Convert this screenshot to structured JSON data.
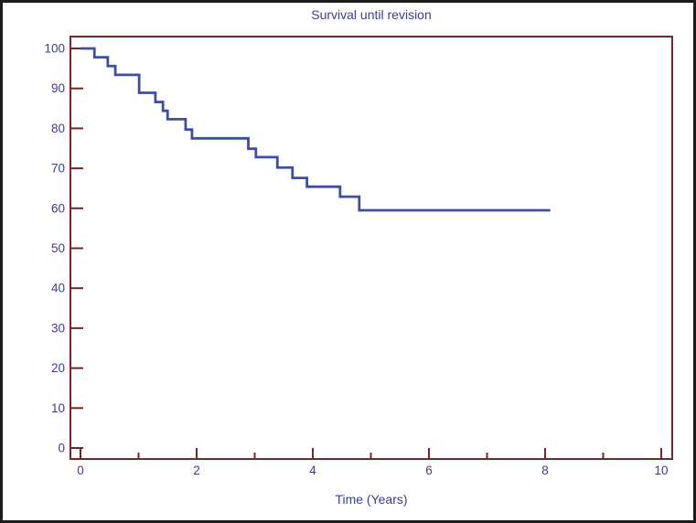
{
  "figure": {
    "title": "Survival until revision",
    "xlabel": "Time (Years)"
  },
  "colors": {
    "background": "#ffffff",
    "outer_border": "#1c1c1c",
    "axis": "#7b2423",
    "curve": "#3f4f9f",
    "text": "#3c3c8f"
  },
  "chart_data": {
    "type": "line",
    "subtype": "kaplan-meier-step",
    "title": "Survival until revision",
    "xlabel": "Time (Years)",
    "ylabel": "",
    "xlim": [
      0,
      10
    ],
    "ylim": [
      0,
      100
    ],
    "x_ticks": [
      0,
      2,
      4,
      6,
      8,
      10
    ],
    "x_minor_ticks": [
      1,
      3,
      5,
      7,
      9
    ],
    "y_ticks": [
      0,
      10,
      20,
      30,
      40,
      50,
      60,
      70,
      80,
      90,
      100
    ],
    "grid": false,
    "legend": null,
    "series": [
      {
        "name": "Survival until revision",
        "start": {
          "t": 0,
          "s": 100
        },
        "events": [
          {
            "t": 0.24,
            "s": 97.8
          },
          {
            "t": 0.47,
            "s": 95.6
          },
          {
            "t": 0.6,
            "s": 93.4
          },
          {
            "t": 1.01,
            "s": 88.9
          },
          {
            "t": 1.29,
            "s": 86.6
          },
          {
            "t": 1.42,
            "s": 84.4
          },
          {
            "t": 1.5,
            "s": 82.3
          },
          {
            "t": 1.81,
            "s": 79.7
          },
          {
            "t": 1.92,
            "s": 77.5
          },
          {
            "t": 2.89,
            "s": 74.9
          },
          {
            "t": 3.02,
            "s": 72.8
          },
          {
            "t": 3.39,
            "s": 70.2
          },
          {
            "t": 3.65,
            "s": 67.6
          },
          {
            "t": 3.9,
            "s": 65.4
          },
          {
            "t": 4.47,
            "s": 62.9
          },
          {
            "t": 4.8,
            "s": 59.5
          }
        ],
        "end_t": 8.09,
        "end_s": 59.5
      }
    ]
  }
}
